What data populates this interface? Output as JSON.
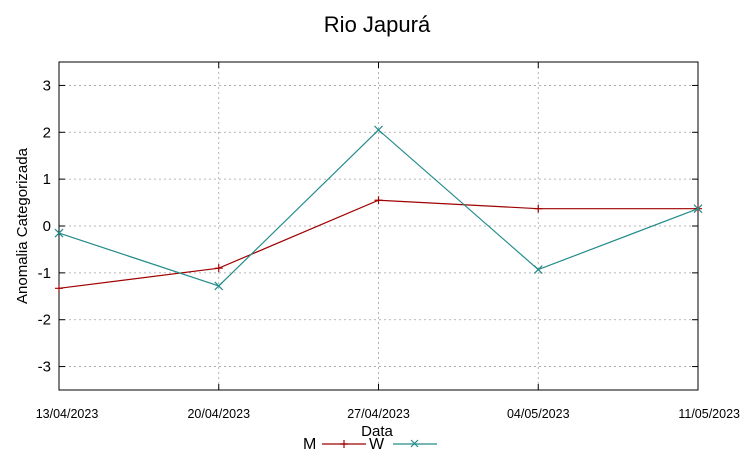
{
  "chart_data": {
    "type": "line",
    "title": "Rio Japurá",
    "xlabel": "Data",
    "ylabel": "Anomalia Categorizada",
    "categories": [
      "13/04/2023",
      "20/04/2023",
      "27/04/2023",
      "04/05/2023",
      "11/05/2023"
    ],
    "yticks": [
      "3",
      "2",
      "1",
      "0",
      "-1",
      "-2",
      "-3"
    ],
    "ytick_values": [
      3,
      2,
      1,
      0,
      -1,
      -2,
      -3
    ],
    "ylim": [
      -3.5,
      3.5
    ],
    "grid": true,
    "legend": "bottom-center",
    "series": [
      {
        "name": "M",
        "color": "#a00000",
        "marker": "plus",
        "values": [
          -1.33,
          -0.9,
          0.55,
          0.37,
          0.37
        ]
      },
      {
        "name": "W",
        "color": "#238b8b",
        "marker": "cross",
        "values": [
          -0.15,
          -1.28,
          2.05,
          -0.93,
          0.37
        ]
      }
    ]
  }
}
